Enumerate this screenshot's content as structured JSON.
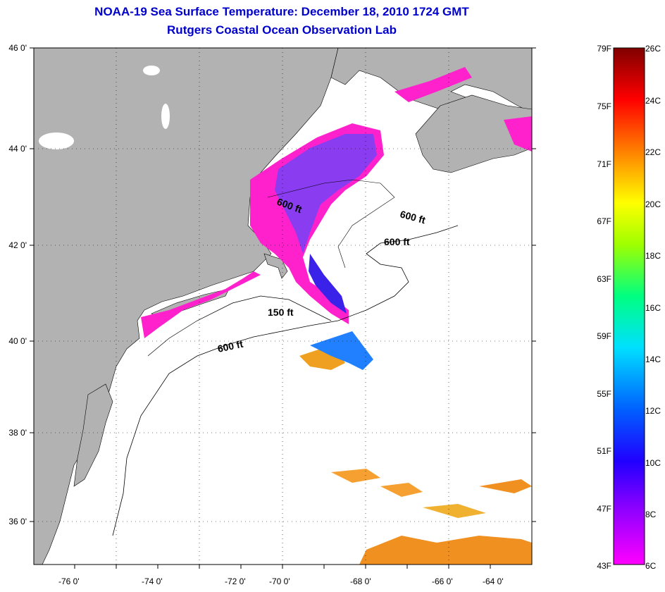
{
  "header": {
    "title": "NOAA-19 Sea Surface Temperature:  December 18, 2010 1724 GMT",
    "subtitle": "Rutgers Coastal Ocean Observation Lab"
  },
  "map": {
    "lat_labels": [
      "46 0'",
      "44 0'",
      "42 0'",
      "40 0'",
      "38 0'",
      "36 0'"
    ],
    "lon_labels": [
      "-76 0'",
      "-74 0'",
      "-72 0'",
      "-70 0'",
      "-68 0'",
      "-66 0'",
      "-64 0'"
    ],
    "isobath_labels": [
      "600 ft",
      "600 ft",
      "600 ft",
      "150 ft",
      "600 ft"
    ],
    "colors": {
      "land": "#b2b2b2",
      "ocean": "#ffffff",
      "coast": "#000000"
    }
  },
  "colorbar": {
    "fahrenheit": [
      "79F",
      "75F",
      "71F",
      "67F",
      "63F",
      "59F",
      "55F",
      "51F",
      "47F",
      "43F"
    ],
    "celsius": [
      "26C",
      "24C",
      "22C",
      "20C",
      "18C",
      "16C",
      "14C",
      "12C",
      "10C",
      "8C",
      "6C"
    ],
    "gradient_stops": [
      "#800000",
      "#ff0000",
      "#ff8000",
      "#ffff00",
      "#00ff80",
      "#00ffff",
      "#0080ff",
      "#0000ff",
      "#8000ff",
      "#ff00ff"
    ]
  }
}
